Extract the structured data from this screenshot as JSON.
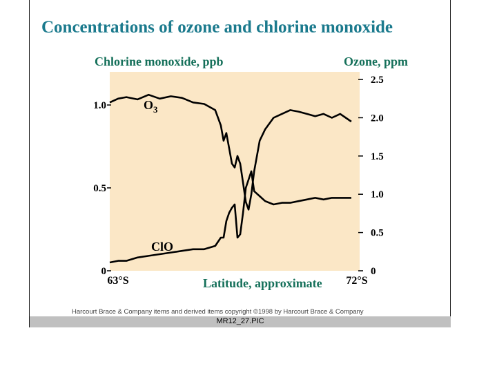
{
  "title": "Concentrations of ozone and chlorine monoxide",
  "footer": {
    "copyright": "Harcourt Brace & Company items and derived items copyright ©1998 by Harcourt Brace & Company",
    "filename": "MR12_27.PIC"
  },
  "colors": {
    "title": "#1b7a8d",
    "axis_title": "#15705a",
    "plot_background": "#fbe7c6",
    "line": "#000000"
  },
  "chart_data": {
    "type": "line",
    "title": "Concentrations of ozone and chlorine monoxide",
    "xlabel": "Latitude, approximate",
    "x_tick_labels": [
      "63°S",
      "72°S"
    ],
    "xlim": [
      -63,
      -72
    ],
    "y_left": {
      "label": "Chlorine monoxide, ppb",
      "ylim": [
        0,
        1.2
      ],
      "ticks": [
        0,
        0.5,
        1.0
      ],
      "tick_labels": [
        "0",
        "0.5",
        "1.0"
      ]
    },
    "y_right": {
      "label": "Ozone, ppm",
      "ylim": [
        0,
        2.6
      ],
      "ticks": [
        0,
        0.5,
        1.0,
        1.5,
        2.0,
        2.5
      ],
      "tick_labels": [
        "0",
        "0.5",
        "1.0",
        "1.5",
        "2.0",
        "2.5"
      ]
    },
    "series": [
      {
        "name": "O3",
        "axis": "right",
        "x": [
          -63.0,
          -63.3,
          -63.6,
          -64.0,
          -64.4,
          -64.8,
          -65.2,
          -65.6,
          -66.0,
          -66.4,
          -66.8,
          -67.0,
          -67.1,
          -67.2,
          -67.3,
          -67.4,
          -67.5,
          -67.6,
          -67.7,
          -67.8,
          -67.9,
          -68.0,
          -68.1,
          -68.2,
          -68.4,
          -68.6,
          -68.9,
          -69.2,
          -69.5,
          -69.8,
          -70.1,
          -70.4,
          -70.7,
          -71.0,
          -71.3,
          -71.5,
          -71.7
        ],
        "values": [
          2.2,
          2.25,
          2.27,
          2.24,
          2.3,
          2.25,
          2.28,
          2.26,
          2.2,
          2.18,
          2.1,
          1.9,
          1.7,
          1.8,
          1.6,
          1.4,
          1.35,
          1.5,
          1.4,
          1.15,
          0.9,
          0.8,
          1.0,
          1.3,
          1.7,
          1.85,
          2.0,
          2.05,
          2.1,
          2.08,
          2.05,
          2.02,
          2.05,
          2.0,
          2.05,
          2.0,
          1.95
        ]
      },
      {
        "name": "ClO",
        "axis": "left",
        "x": [
          -63.0,
          -63.3,
          -63.6,
          -64.0,
          -64.4,
          -64.8,
          -65.2,
          -65.6,
          -66.0,
          -66.4,
          -66.8,
          -67.0,
          -67.1,
          -67.2,
          -67.3,
          -67.4,
          -67.5,
          -67.6,
          -67.7,
          -67.8,
          -67.9,
          -68.0,
          -68.1,
          -68.2,
          -68.4,
          -68.6,
          -68.9,
          -69.2,
          -69.5,
          -69.8,
          -70.1,
          -70.4,
          -70.7,
          -71.0,
          -71.3,
          -71.5,
          -71.7
        ],
        "values": [
          0.05,
          0.06,
          0.06,
          0.08,
          0.09,
          0.1,
          0.11,
          0.12,
          0.13,
          0.13,
          0.15,
          0.2,
          0.2,
          0.3,
          0.35,
          0.38,
          0.4,
          0.2,
          0.22,
          0.35,
          0.5,
          0.55,
          0.6,
          0.48,
          0.45,
          0.42,
          0.4,
          0.41,
          0.41,
          0.42,
          0.43,
          0.44,
          0.43,
          0.44,
          0.44,
          0.44,
          0.44
        ]
      }
    ],
    "annotations": [
      {
        "text": "O",
        "subscript": "3",
        "series": "O3"
      },
      {
        "text": "ClO",
        "series": "ClO"
      }
    ],
    "grid": false,
    "legend": "none"
  }
}
